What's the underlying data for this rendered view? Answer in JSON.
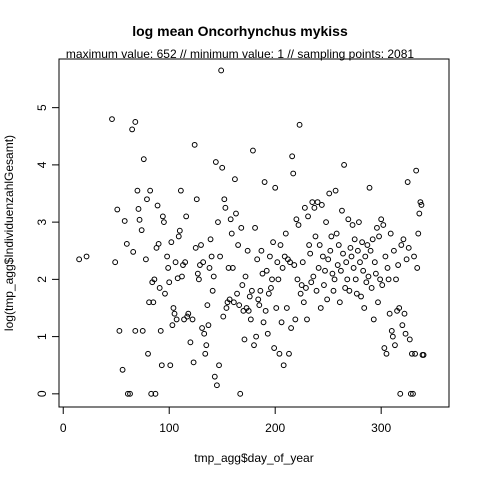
{
  "chart_data": {
    "type": "scatter",
    "title": "log mean Oncorhynchus mykiss",
    "subtitle": "maximum value: 652  //  minimum value: 1  // sampling points: 2081",
    "xlabel": "tmp_agg$day_of_year",
    "ylabel": "log(tmp_agg$IndividuenzahlGesamt)",
    "xlim": [
      -4,
      364
    ],
    "ylim": [
      -0.23,
      5.85
    ],
    "xticks": [
      0,
      100,
      200,
      300
    ],
    "yticks": [
      0,
      1,
      2,
      3,
      4,
      5
    ],
    "grid": false,
    "points": [
      [
        15,
        2.35
      ],
      [
        22,
        2.4
      ],
      [
        46,
        4.8
      ],
      [
        49,
        2.3
      ],
      [
        51,
        3.22
      ],
      [
        53,
        1.1
      ],
      [
        56,
        0.42
      ],
      [
        58,
        3.02
      ],
      [
        60,
        2.62
      ],
      [
        61,
        0
      ],
      [
        63,
        0
      ],
      [
        65,
        4.62
      ],
      [
        66,
        2.48
      ],
      [
        68,
        4.75
      ],
      [
        68,
        1.1
      ],
      [
        70,
        3.55
      ],
      [
        71,
        3.23
      ],
      [
        72,
        3.04
      ],
      [
        74,
        2.86
      ],
      [
        75,
        1.1
      ],
      [
        76,
        4.1
      ],
      [
        78,
        2.35
      ],
      [
        79,
        3.4
      ],
      [
        80,
        0.7
      ],
      [
        81,
        1.6
      ],
      [
        82,
        3.55
      ],
      [
        83,
        0
      ],
      [
        84,
        1.95
      ],
      [
        85,
        1.6
      ],
      [
        86,
        2.0
      ],
      [
        87,
        0
      ],
      [
        88,
        2.55
      ],
      [
        89,
        3.29
      ],
      [
        90,
        2.62
      ],
      [
        91,
        1.85
      ],
      [
        92,
        1.1
      ],
      [
        93,
        0.5
      ],
      [
        94,
        3.1
      ],
      [
        95,
        3.0
      ],
      [
        96,
        1.75
      ],
      [
        98,
        2.4
      ],
      [
        99,
        2.2
      ],
      [
        100,
        1.95
      ],
      [
        101,
        0.5
      ],
      [
        102,
        2.65
      ],
      [
        103,
        1.2
      ],
      [
        104,
        1.5
      ],
      [
        105,
        1.4
      ],
      [
        106,
        2.3
      ],
      [
        107,
        1.3
      ],
      [
        108,
        2.02
      ],
      [
        109,
        2.75
      ],
      [
        110,
        2.85
      ],
      [
        111,
        3.55
      ],
      [
        112,
        2.05
      ],
      [
        113,
        2.25
      ],
      [
        114,
        1.3
      ],
      [
        115,
        2.3
      ],
      [
        116,
        3.1
      ],
      [
        117,
        1.35
      ],
      [
        118,
        1.4
      ],
      [
        120,
        0.9
      ],
      [
        122,
        1.3
      ],
      [
        123,
        0.55
      ],
      [
        124,
        4.35
      ],
      [
        125,
        2.55
      ],
      [
        126,
        3.4
      ],
      [
        127,
        2.1
      ],
      [
        128,
        2.0
      ],
      [
        129,
        2.25
      ],
      [
        130,
        2.6
      ],
      [
        131,
        1.15
      ],
      [
        132,
        2.3
      ],
      [
        133,
        1.05
      ],
      [
        134,
        0.7
      ],
      [
        135,
        0.85
      ],
      [
        136,
        1.55
      ],
      [
        137,
        1.2
      ],
      [
        138,
        2.2
      ],
      [
        139,
        2.7
      ],
      [
        140,
        2.4
      ],
      [
        141,
        1.8
      ],
      [
        142,
        2.05
      ],
      [
        143,
        0.3
      ],
      [
        144,
        4.05
      ],
      [
        145,
        0.15
      ],
      [
        146,
        3.0
      ],
      [
        147,
        0.5
      ],
      [
        148,
        2.4
      ],
      [
        149,
        5.65
      ],
      [
        150,
        3.95
      ],
      [
        151,
        1.35
      ],
      [
        152,
        3.4
      ],
      [
        153,
        3.25
      ],
      [
        154,
        1.5
      ],
      [
        155,
        1.6
      ],
      [
        156,
        2.2
      ],
      [
        157,
        1.65
      ],
      [
        158,
        3.05
      ],
      [
        159,
        2.8
      ],
      [
        160,
        2.2
      ],
      [
        161,
        1.6
      ],
      [
        162,
        3.75
      ],
      [
        163,
        3.15
      ],
      [
        164,
        1.75
      ],
      [
        165,
        2.6
      ],
      [
        166,
        1.55
      ],
      [
        167,
        0
      ],
      [
        168,
        2.9
      ],
      [
        169,
        1.9
      ],
      [
        170,
        1.45
      ],
      [
        171,
        0.95
      ],
      [
        172,
        2.05
      ],
      [
        173,
        1.5
      ],
      [
        174,
        2.5
      ],
      [
        175,
        1.45
      ],
      [
        176,
        1.7
      ],
      [
        177,
        1.3
      ],
      [
        178,
        1.8
      ],
      [
        179,
        4.25
      ],
      [
        180,
        0.85
      ],
      [
        181,
        2.9
      ],
      [
        182,
        1.0
      ],
      [
        183,
        2.35
      ],
      [
        184,
        1.65
      ],
      [
        185,
        1.55
      ],
      [
        186,
        1.8
      ],
      [
        187,
        2.5
      ],
      [
        188,
        2.1
      ],
      [
        189,
        1.25
      ],
      [
        190,
        3.7
      ],
      [
        191,
        1.45
      ],
      [
        192,
        2.15
      ],
      [
        193,
        1.05
      ],
      [
        194,
        1.75
      ],
      [
        195,
        2.4
      ],
      [
        196,
        1.85
      ],
      [
        197,
        2.0
      ],
      [
        198,
        2.65
      ],
      [
        199,
        0.8
      ],
      [
        200,
        3.6
      ],
      [
        201,
        1.5
      ],
      [
        202,
        2.3
      ],
      [
        203,
        2.0
      ],
      [
        204,
        0.7
      ],
      [
        205,
        2.6
      ],
      [
        206,
        1.25
      ],
      [
        207,
        2.2
      ],
      [
        208,
        0.5
      ],
      [
        209,
        2.4
      ],
      [
        210,
        2.8
      ],
      [
        211,
        1.5
      ],
      [
        212,
        2.35
      ],
      [
        213,
        0.7
      ],
      [
        214,
        2.3
      ],
      [
        215,
        1.15
      ],
      [
        216,
        4.15
      ],
      [
        217,
        3.85
      ],
      [
        218,
        2.25
      ],
      [
        219,
        1.3
      ],
      [
        220,
        3.05
      ],
      [
        221,
        2.0
      ],
      [
        222,
        2.95
      ],
      [
        223,
        4.7
      ],
      [
        224,
        1.75
      ],
      [
        225,
        1.9
      ],
      [
        226,
        2.3
      ],
      [
        227,
        1.6
      ],
      [
        228,
        3.25
      ],
      [
        229,
        1.85
      ],
      [
        230,
        1.3
      ],
      [
        231,
        3.1
      ],
      [
        232,
        2.6
      ],
      [
        233,
        2.45
      ],
      [
        234,
        1.95
      ],
      [
        235,
        3.35
      ],
      [
        236,
        2.05
      ],
      [
        237,
        3.25
      ],
      [
        238,
        2.75
      ],
      [
        239,
        1.8
      ],
      [
        240,
        3.35
      ],
      [
        241,
        2.2
      ],
      [
        242,
        2.6
      ],
      [
        243,
        1.5
      ],
      [
        244,
        3.3
      ],
      [
        245,
        2.4
      ],
      [
        246,
        1.9
      ],
      [
        247,
        2.15
      ],
      [
        248,
        3.0
      ],
      [
        249,
        1.65
      ],
      [
        250,
        2.35
      ],
      [
        251,
        3.5
      ],
      [
        252,
        2.5
      ],
      [
        253,
        2.75
      ],
      [
        254,
        2.1
      ],
      [
        255,
        1.8
      ],
      [
        256,
        2.0
      ],
      [
        257,
        3.55
      ],
      [
        258,
        2.8
      ],
      [
        259,
        2.25
      ],
      [
        260,
        2.6
      ],
      [
        261,
        1.6
      ],
      [
        262,
        2.15
      ],
      [
        263,
        3.2
      ],
      [
        264,
        2.45
      ],
      [
        265,
        4.0
      ],
      [
        266,
        1.85
      ],
      [
        267,
        2.3
      ],
      [
        268,
        2.0
      ],
      [
        269,
        3.05
      ],
      [
        270,
        1.8
      ],
      [
        271,
        2.55
      ],
      [
        272,
        2.4
      ],
      [
        273,
        2.95
      ],
      [
        274,
        2.2
      ],
      [
        275,
        2.7
      ],
      [
        276,
        2.0
      ],
      [
        277,
        1.75
      ],
      [
        278,
        2.5
      ],
      [
        279,
        3.0
      ],
      [
        280,
        2.3
      ],
      [
        281,
        1.7
      ],
      [
        282,
        2.65
      ],
      [
        283,
        2.15
      ],
      [
        284,
        1.5
      ],
      [
        285,
        2.4
      ],
      [
        286,
        1.95
      ],
      [
        287,
        2.6
      ],
      [
        288,
        2.05
      ],
      [
        289,
        3.6
      ],
      [
        290,
        2.5
      ],
      [
        291,
        1.85
      ],
      [
        292,
        2.7
      ],
      [
        293,
        1.3
      ],
      [
        294,
        2.3
      ],
      [
        295,
        2.1
      ],
      [
        296,
        2.9
      ],
      [
        297,
        1.6
      ],
      [
        298,
        2.75
      ],
      [
        299,
        2.0
      ],
      [
        300,
        3.05
      ],
      [
        301,
        1.9
      ],
      [
        302,
        2.95
      ],
      [
        303,
        0.8
      ],
      [
        304,
        2.4
      ],
      [
        305,
        0.7
      ],
      [
        306,
        2.2
      ],
      [
        307,
        2.0
      ],
      [
        308,
        1.4
      ],
      [
        309,
        2.8
      ],
      [
        310,
        1.1
      ],
      [
        311,
        1.0
      ],
      [
        312,
        2.5
      ],
      [
        313,
        0.85
      ],
      [
        314,
        2.0
      ],
      [
        315,
        1.45
      ],
      [
        316,
        2.25
      ],
      [
        317,
        1.5
      ],
      [
        318,
        0
      ],
      [
        319,
        2.6
      ],
      [
        320,
        1.2
      ],
      [
        321,
        2.7
      ],
      [
        322,
        1.4
      ],
      [
        323,
        1.05
      ],
      [
        324,
        2.35
      ],
      [
        325,
        3.7
      ],
      [
        326,
        2.55
      ],
      [
        327,
        0.95
      ],
      [
        328,
        0
      ],
      [
        329,
        0.7
      ],
      [
        330,
        0
      ],
      [
        331,
        2.4
      ],
      [
        332,
        0.7
      ],
      [
        333,
        3.9
      ],
      [
        334,
        2.2
      ],
      [
        335,
        2.8
      ],
      [
        336,
        3.15
      ],
      [
        337,
        3.35
      ],
      [
        338,
        3.3
      ],
      [
        339,
        0.68
      ],
      [
        340,
        0.68
      ]
    ]
  }
}
